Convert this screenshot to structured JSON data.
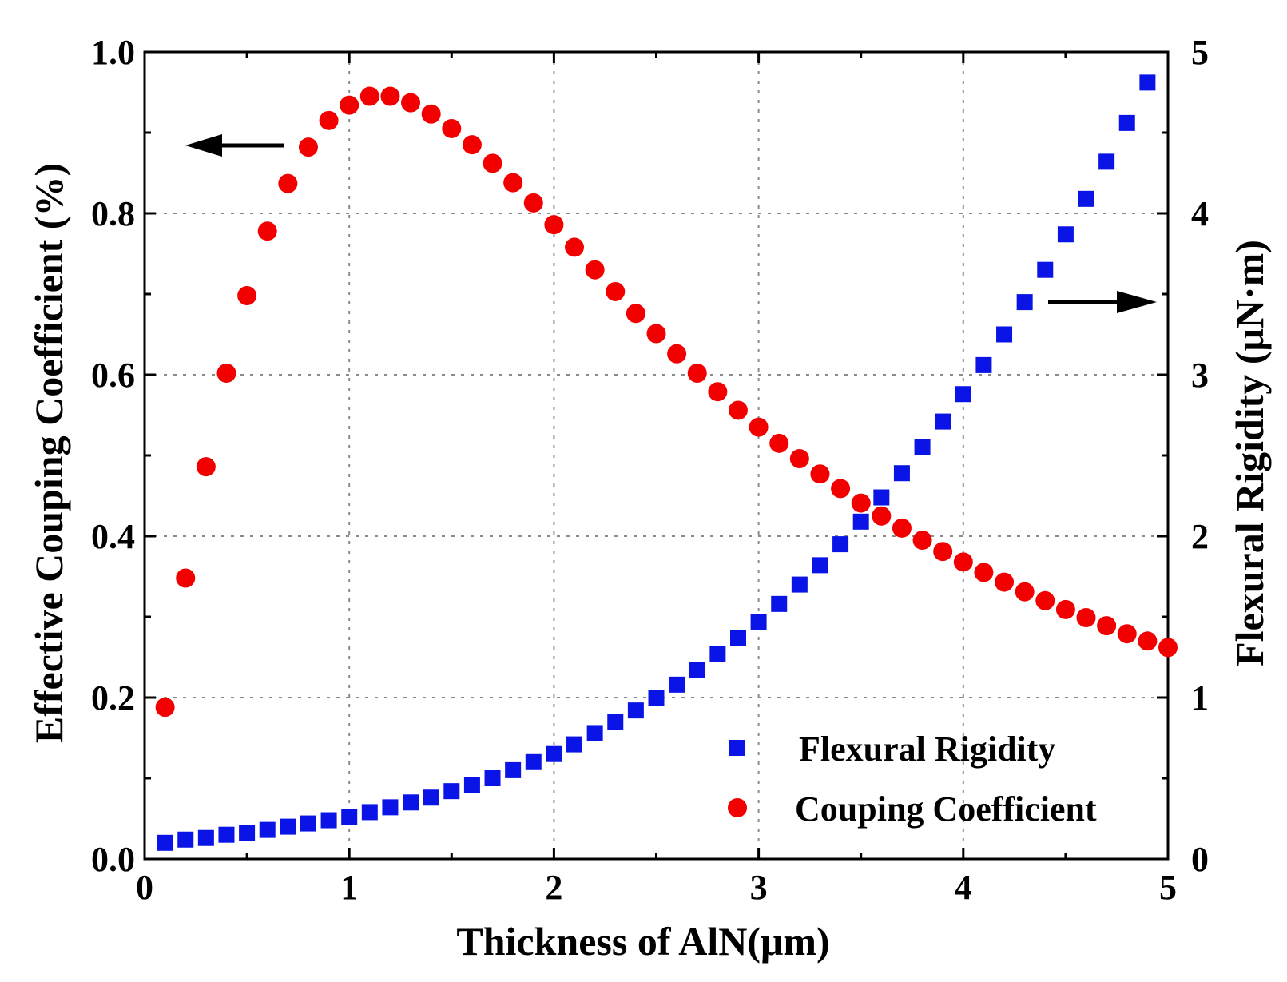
{
  "chart_data": {
    "type": "scatter",
    "title": "",
    "xlabel": "Thickness of AlN(μm)",
    "ylabel": "Effective Couping Coefficient (%)",
    "y2label": "Flexural Rigidity (μN·m)",
    "xlim": [
      0,
      5
    ],
    "ylim": [
      0,
      1.0
    ],
    "y2lim": [
      0,
      5
    ],
    "grid": true,
    "legend_position": "bottom-right",
    "x_ticks": [
      "0",
      "1",
      "2",
      "3",
      "4",
      "5"
    ],
    "y_ticks": [
      "0.0",
      "0.2",
      "0.4",
      "0.6",
      "0.8",
      "1.0"
    ],
    "y2_ticks": [
      "0",
      "1",
      "2",
      "3",
      "4",
      "5"
    ],
    "series": [
      {
        "name": "Flexural Rigidity",
        "axis": "right",
        "marker": "square",
        "color": "#0a14e6",
        "x": [
          0.1,
          0.2,
          0.3,
          0.4,
          0.5,
          0.6,
          0.7,
          0.8,
          0.9,
          1.0,
          1.1,
          1.2,
          1.3,
          1.4,
          1.5,
          1.6,
          1.7,
          1.8,
          1.9,
          2.0,
          2.1,
          2.2,
          2.3,
          2.4,
          2.5,
          2.6,
          2.7,
          2.8,
          2.9,
          3.0,
          3.1,
          3.2,
          3.3,
          3.4,
          3.5,
          3.6,
          3.7,
          3.8,
          3.9,
          4.0,
          4.1,
          4.2,
          4.3,
          4.4,
          4.5,
          4.6,
          4.7,
          4.8,
          4.9
        ],
        "y": [
          0.1,
          0.12,
          0.13,
          0.15,
          0.16,
          0.18,
          0.2,
          0.22,
          0.24,
          0.26,
          0.29,
          0.32,
          0.35,
          0.38,
          0.42,
          0.46,
          0.5,
          0.55,
          0.6,
          0.65,
          0.71,
          0.78,
          0.85,
          0.92,
          1.0,
          1.08,
          1.17,
          1.27,
          1.37,
          1.47,
          1.58,
          1.7,
          1.82,
          1.95,
          2.09,
          2.24,
          2.39,
          2.55,
          2.71,
          2.88,
          3.06,
          3.25,
          3.45,
          3.65,
          3.87,
          4.09,
          4.32,
          4.56,
          4.81
        ]
      },
      {
        "name": "Couping Coefficient",
        "axis": "left",
        "marker": "circle",
        "color": "#f20000",
        "x": [
          0.1,
          0.2,
          0.3,
          0.4,
          0.5,
          0.6,
          0.7,
          0.8,
          0.9,
          1.0,
          1.1,
          1.2,
          1.3,
          1.4,
          1.5,
          1.6,
          1.7,
          1.8,
          1.9,
          2.0,
          2.1,
          2.2,
          2.3,
          2.4,
          2.5,
          2.6,
          2.7,
          2.8,
          2.9,
          3.0,
          3.1,
          3.2,
          3.3,
          3.4,
          3.5,
          3.6,
          3.7,
          3.8,
          3.9,
          4.0,
          4.1,
          4.2,
          4.3,
          4.4,
          4.5,
          4.6,
          4.7,
          4.8,
          4.9,
          5.0
        ],
        "y": [
          0.188,
          0.348,
          0.486,
          0.602,
          0.698,
          0.778,
          0.837,
          0.882,
          0.915,
          0.934,
          0.945,
          0.945,
          0.937,
          0.923,
          0.905,
          0.885,
          0.862,
          0.838,
          0.813,
          0.786,
          0.758,
          0.73,
          0.703,
          0.676,
          0.651,
          0.626,
          0.602,
          0.579,
          0.556,
          0.535,
          0.515,
          0.496,
          0.477,
          0.459,
          0.441,
          0.425,
          0.41,
          0.395,
          0.381,
          0.368,
          0.355,
          0.343,
          0.331,
          0.32,
          0.309,
          0.299,
          0.289,
          0.279,
          0.27,
          0.262
        ]
      }
    ]
  }
}
